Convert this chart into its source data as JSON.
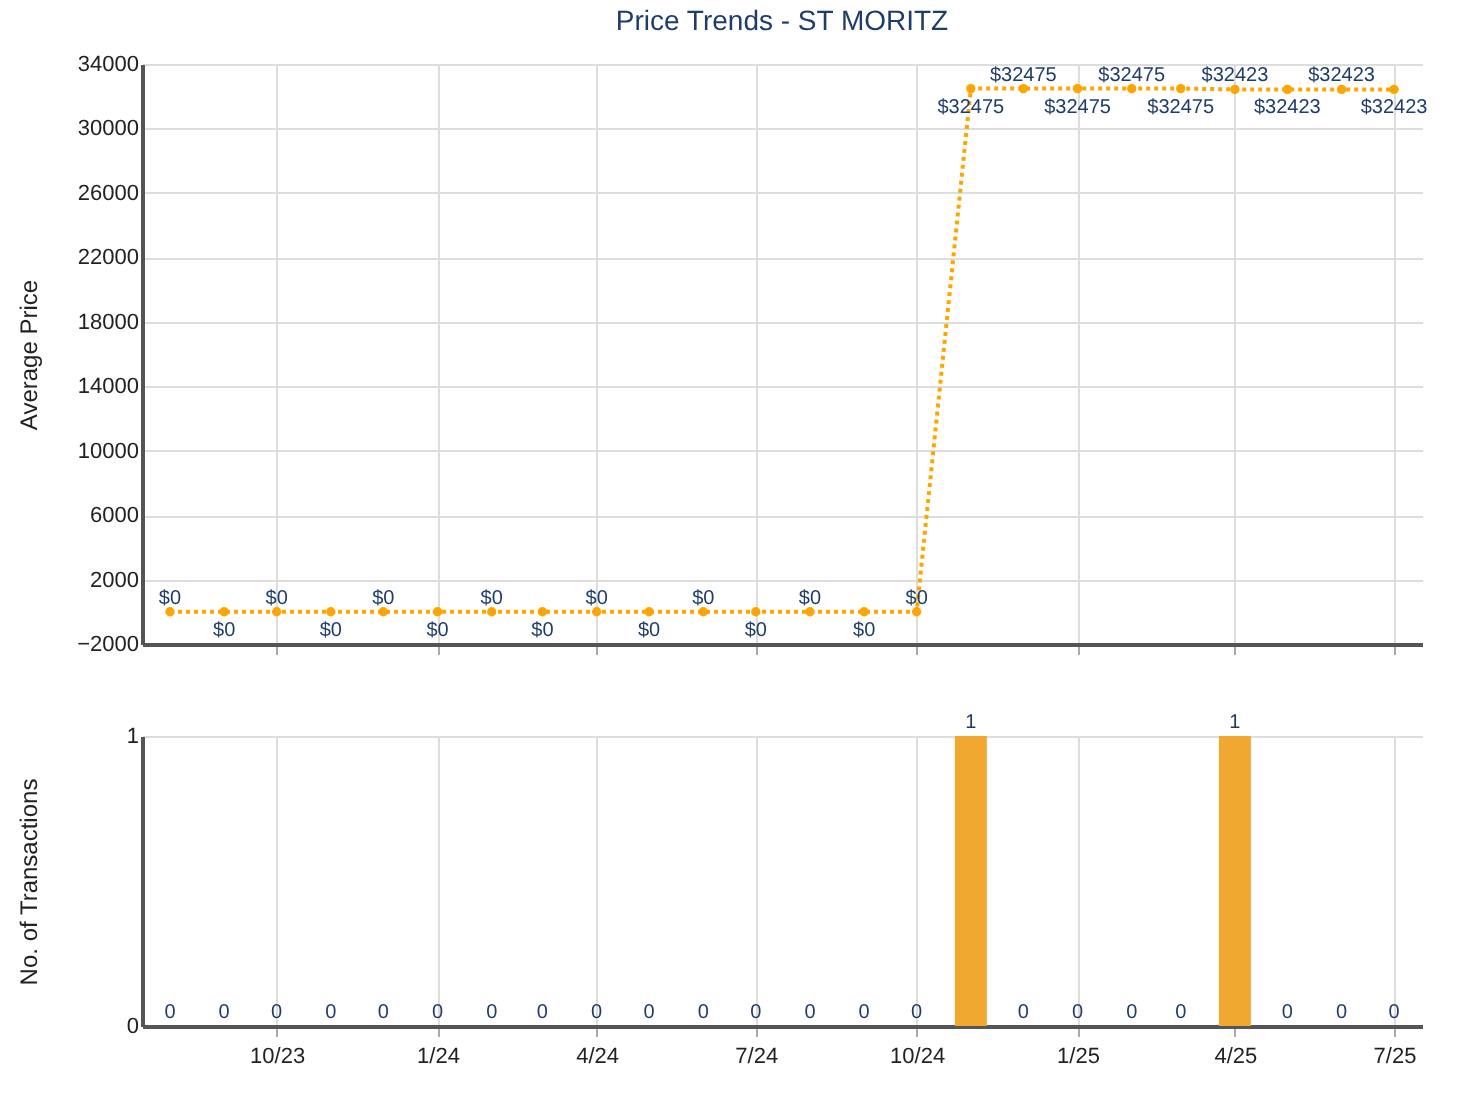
{
  "chart_data": [
    {
      "type": "line",
      "title": "Price Trends - ST MORITZ",
      "ylabel": "Average Price",
      "x": [
        "2023-08",
        "2023-09",
        "2023-10",
        "2023-11",
        "2023-12",
        "2024-01",
        "2024-02",
        "2024-03",
        "2024-04",
        "2024-05",
        "2024-06",
        "2024-07",
        "2024-08",
        "2024-09",
        "2024-10",
        "2024-11",
        "2024-12",
        "2025-01",
        "2025-02",
        "2025-03",
        "2025-04",
        "2025-05",
        "2025-06",
        "2025-07"
      ],
      "series": [
        {
          "color": "#ffa500",
          "values": [
            0,
            0,
            0,
            0,
            0,
            0,
            0,
            0,
            0,
            0,
            0,
            0,
            0,
            0,
            0,
            32475,
            32475,
            32475,
            32475,
            32475,
            32423,
            32423,
            32423,
            32423
          ],
          "value_labels": [
            "$0",
            "$0",
            "$0",
            "$0",
            "$0",
            "$0",
            "$0",
            "$0",
            "$0",
            "$0",
            "$0",
            "$0",
            "$0",
            "$0",
            "$0",
            "$32475",
            "$32475",
            "$32475",
            "$32475",
            "$32475",
            "$32423",
            "$32423",
            "$32423",
            "$32423"
          ]
        }
      ],
      "xlim": [
        "2023-07-16",
        "2025-07-17"
      ],
      "xticks": [
        {
          "value": "2023-10",
          "label": null
        },
        {
          "value": "2024-01",
          "label": null
        },
        {
          "value": "2024-04",
          "label": null
        },
        {
          "value": "2024-07",
          "label": null
        },
        {
          "value": "2024-10",
          "label": null
        },
        {
          "value": "2025-01",
          "label": null
        },
        {
          "value": "2025-04",
          "label": null
        },
        {
          "value": "2025-07",
          "label": null
        }
      ],
      "ylim": [
        -2000,
        34000
      ],
      "yticks": [
        -2000,
        2000,
        6000,
        10000,
        14000,
        18000,
        22000,
        26000,
        30000,
        34000
      ],
      "grid": true,
      "marker": "circle",
      "line_style": "dotted",
      "tick_labels": "y"
    },
    {
      "type": "bar",
      "ylabel": "No. of Transactions",
      "x": [
        "2023-08",
        "2023-09",
        "2023-10",
        "2023-11",
        "2023-12",
        "2024-01",
        "2024-02",
        "2024-03",
        "2024-04",
        "2024-05",
        "2024-06",
        "2024-07",
        "2024-08",
        "2024-09",
        "2024-10",
        "2024-11",
        "2024-12",
        "2025-01",
        "2025-02",
        "2025-03",
        "2025-04",
        "2025-05",
        "2025-06",
        "2025-07"
      ],
      "series": [
        {
          "color": "#f0a830",
          "values": [
            0,
            0,
            0,
            0,
            0,
            0,
            0,
            0,
            0,
            0,
            0,
            0,
            0,
            0,
            0,
            1,
            0,
            0,
            0,
            0,
            1,
            0,
            0,
            0
          ]
        }
      ],
      "xlim": [
        "2023-07-16",
        "2025-07-17"
      ],
      "xticks": [
        {
          "value": "2023-10",
          "label": "10/23"
        },
        {
          "value": "2024-01",
          "label": "1/24"
        },
        {
          "value": "2024-04",
          "label": "4/24"
        },
        {
          "value": "2024-07",
          "label": "7/24"
        },
        {
          "value": "2024-10",
          "label": "10/24"
        },
        {
          "value": "2025-01",
          "label": "1/25"
        },
        {
          "value": "2025-04",
          "label": "4/25"
        },
        {
          "value": "2025-07",
          "label": "7/25"
        }
      ],
      "ylim": [
        0,
        1
      ],
      "yticks": [
        0,
        1
      ],
      "grid": true,
      "data_labels": true
    }
  ]
}
